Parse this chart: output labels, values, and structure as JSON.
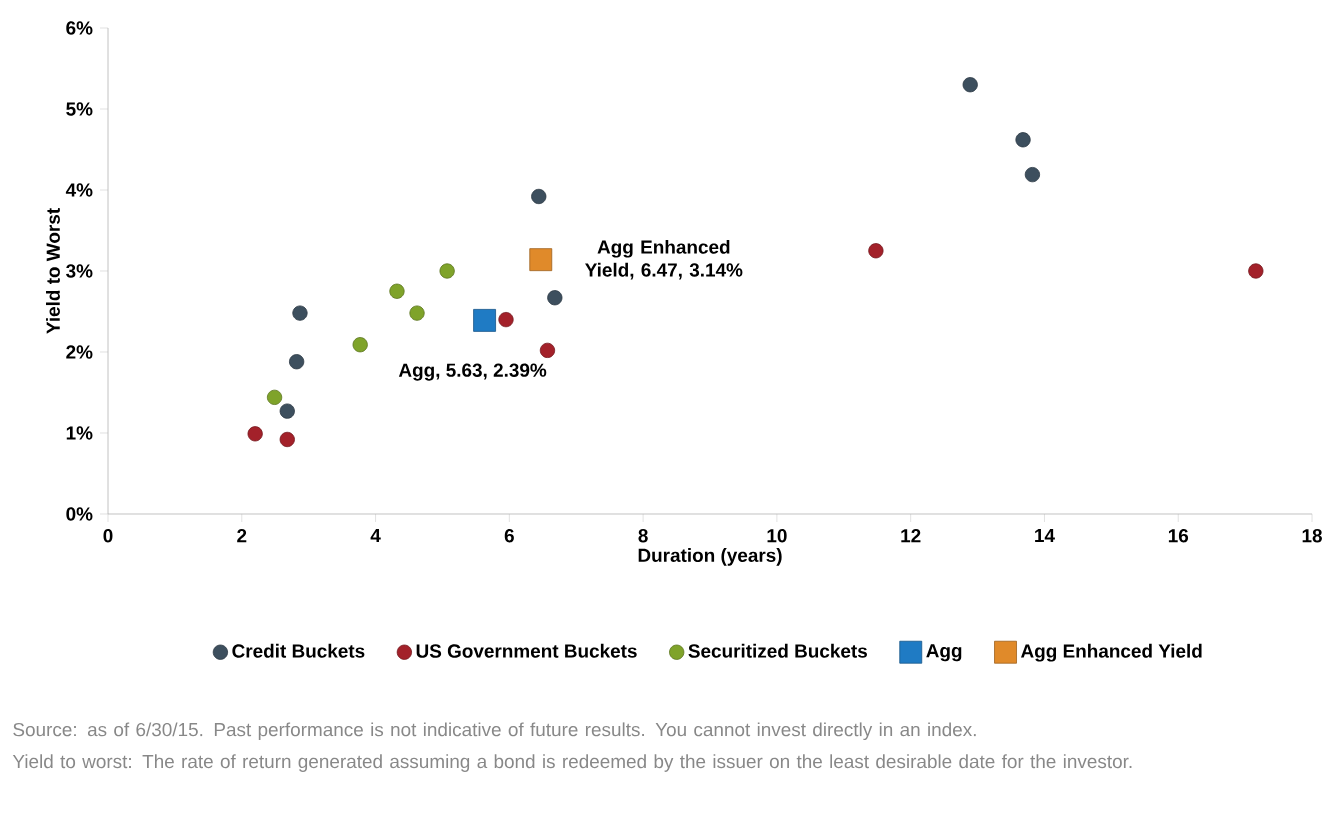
{
  "chart_data": {
    "type": "scatter",
    "xlabel": "Duration (years)",
    "ylabel": "Yield to Worst",
    "xlim": [
      0,
      18
    ],
    "xticks": [
      0,
      2,
      4,
      6,
      8,
      10,
      12,
      14,
      16,
      18
    ],
    "ylim": [
      0,
      6
    ],
    "yticks": [
      {
        "value": 0,
        "label": "0%"
      },
      {
        "value": 1,
        "label": "1%"
      },
      {
        "value": 2,
        "label": "2%"
      },
      {
        "value": 3,
        "label": "3%"
      },
      {
        "value": 4,
        "label": "4%"
      },
      {
        "value": 5,
        "label": "5%"
      },
      {
        "value": 6,
        "label": "6%"
      }
    ],
    "grid": false,
    "legend": "bottom",
    "series": [
      {
        "name": "Credit Buckets",
        "color": "#3d4f5e",
        "marker": "circle",
        "x": [
          6.44,
          2.87,
          2.82,
          2.68,
          6.68,
          12.89,
          13.68,
          13.82
        ],
        "values": [
          3.92,
          2.48,
          1.88,
          1.27,
          2.67,
          5.3,
          4.62,
          4.19
        ]
      },
      {
        "name": "US Government Buckets",
        "color": "#a3212a",
        "marker": "circle",
        "x": [
          2.2,
          2.68,
          5.95,
          6.57,
          11.48,
          17.16
        ],
        "values": [
          0.99,
          0.92,
          2.4,
          2.02,
          3.25,
          3.0
        ]
      },
      {
        "name": "Securitized Buckets",
        "color": "#7fa32a",
        "marker": "circle",
        "x": [
          2.49,
          3.77,
          4.32,
          4.62,
          5.07
        ],
        "values": [
          1.44,
          2.09,
          2.75,
          2.48,
          3.0
        ]
      },
      {
        "name": "Agg",
        "color": "#1f7bc4",
        "marker": "square",
        "x": [
          5.63
        ],
        "values": [
          2.39
        ]
      },
      {
        "name": "Agg Enhanced Yield",
        "color": "#e08a2a",
        "marker": "square",
        "x": [
          6.47
        ],
        "values": [
          3.14
        ]
      }
    ],
    "annotations": [
      {
        "text": "Agg, 5.63, 2.39%",
        "x": 5.63,
        "y": 2.39
      },
      {
        "text": "Agg Enhanced Yield, 6.47, 3.14%",
        "x": 6.47,
        "y": 3.14
      },
      "Source: as of 6/30/15. Past performance is not indicative of future results. You cannot invest directly in an index.",
      "Yield to worst: The rate of return generated assuming a bond is redeemed by the issuer on the least desirable date for the investor."
    ]
  }
}
